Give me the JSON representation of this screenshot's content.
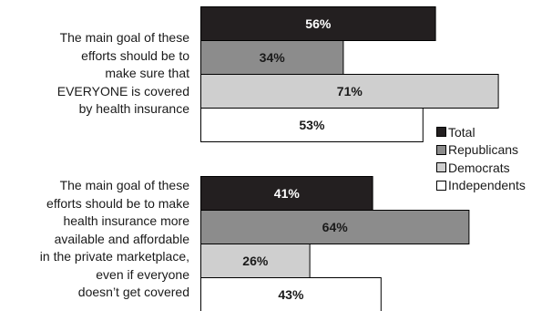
{
  "chart_data": {
    "type": "bar",
    "orientation": "horizontal",
    "value_suffix": "%",
    "xlim": [
      0,
      100
    ],
    "categories": [
      {
        "lines": [
          "The main goal of these",
          "efforts should be to",
          "make sure that",
          "EVERYONE is covered",
          "by health insurance"
        ]
      },
      {
        "lines": [
          "The main goal of these",
          "efforts should be to make",
          "health insurance more",
          "available and affordable",
          "in the private marketplace,",
          "even if everyone",
          "doesn’t get covered"
        ]
      }
    ],
    "series": [
      {
        "name": "Total",
        "color": "#231f20",
        "label_color": "#ffffff",
        "values": [
          56,
          41
        ]
      },
      {
        "name": "Republicans",
        "color": "#8c8c8c",
        "label_color": "#1a1a1a",
        "values": [
          34,
          64
        ]
      },
      {
        "name": "Democrats",
        "color": "#cfcfcf",
        "label_color": "#1a1a1a",
        "values": [
          71,
          26
        ]
      },
      {
        "name": "Independents",
        "color": "#ffffff",
        "label_color": "#1a1a1a",
        "values": [
          53,
          43
        ]
      }
    ],
    "legend_position": "right"
  }
}
